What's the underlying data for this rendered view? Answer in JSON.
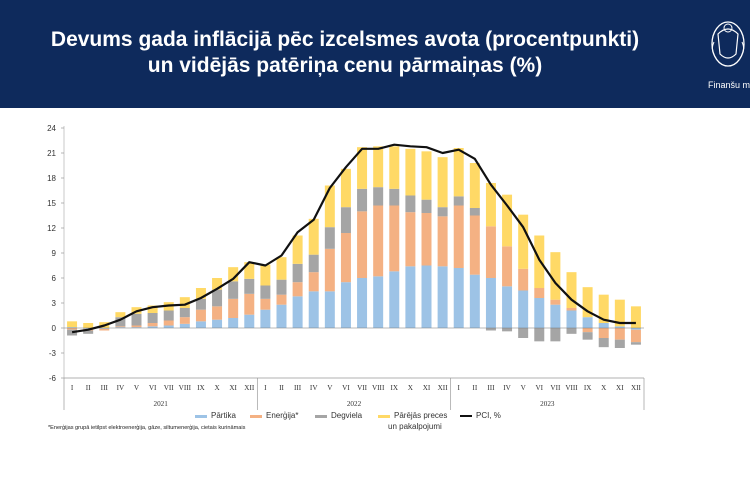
{
  "header": {
    "title_line1": "Devums gada inflācijā pēc izcelsmes avota (procentpunkti)",
    "title_line2": "un vidējās patēriņa cenu pārmaiņas (%)",
    "org_name": "Finanšu m",
    "background": "#0e2a5c"
  },
  "chart_data": {
    "type": "bar",
    "stacked": true,
    "months": [
      "I",
      "II",
      "III",
      "IV",
      "V",
      "VI",
      "VII",
      "VIII",
      "IX",
      "X",
      "XI",
      "XII",
      "I",
      "II",
      "III",
      "IV",
      "V",
      "VI",
      "VII",
      "VIII",
      "IX",
      "X",
      "XI",
      "XII",
      "I",
      "II",
      "III",
      "IV",
      "V",
      "VI",
      "VII",
      "VIII",
      "IX",
      "X",
      "XI",
      "XII"
    ],
    "years": [
      "2021",
      "2022",
      "2023"
    ],
    "y_ticks": [
      -6,
      -3,
      0,
      3,
      6,
      9,
      12,
      15,
      18,
      21,
      24
    ],
    "ylim": [
      -6,
      24
    ],
    "grid": false,
    "legend_position": "bottom",
    "series": [
      {
        "name": "Pārtika",
        "color": "#9dc3e6",
        "values": [
          0.1,
          -0.1,
          -0.1,
          0.1,
          0.1,
          0.2,
          0.3,
          0.5,
          0.8,
          1.0,
          1.2,
          1.6,
          2.2,
          2.8,
          3.8,
          4.4,
          4.4,
          5.5,
          6.0,
          6.2,
          6.8,
          7.4,
          7.5,
          7.4,
          7.2,
          6.4,
          6.0,
          5.0,
          4.5,
          3.6,
          2.8,
          2.1,
          1.3,
          0.6,
          0.2,
          -0.2
        ]
      },
      {
        "name": "Enerģija*",
        "color": "#f4b183",
        "values": [
          -0.2,
          -0.2,
          -0.2,
          0.1,
          0.2,
          0.4,
          0.6,
          0.8,
          1.4,
          1.6,
          2.3,
          2.5,
          1.3,
          1.2,
          1.7,
          2.3,
          5.1,
          5.9,
          8.0,
          8.5,
          7.9,
          6.5,
          6.3,
          6.0,
          7.5,
          7.1,
          6.2,
          4.8,
          2.6,
          1.2,
          0.6,
          0.3,
          -0.5,
          -1.2,
          -1.4,
          -1.5
        ]
      },
      {
        "name": "Degviela",
        "color": "#a5a5a5",
        "values": [
          -0.7,
          -0.4,
          0.0,
          1.1,
          1.4,
          1.2,
          1.2,
          1.1,
          1.3,
          2.0,
          2.1,
          1.8,
          1.6,
          1.8,
          2.2,
          2.1,
          2.6,
          3.1,
          2.7,
          2.2,
          2.0,
          2.0,
          1.6,
          1.1,
          1.1,
          0.9,
          -0.3,
          -0.4,
          -1.2,
          -1.6,
          -1.6,
          -0.7,
          -0.9,
          -1.1,
          -1.0,
          -0.3
        ]
      },
      {
        "name": "Pārējās preces un pakalpojumi",
        "color": "#ffd966",
        "values": [
          0.7,
          0.6,
          0.7,
          0.6,
          0.8,
          0.9,
          1.0,
          1.3,
          1.3,
          1.4,
          1.7,
          2.0,
          2.5,
          2.7,
          3.4,
          4.3,
          5.0,
          4.6,
          5.0,
          4.9,
          5.1,
          5.6,
          5.8,
          6.0,
          5.8,
          5.4,
          5.2,
          6.2,
          6.5,
          6.3,
          5.7,
          4.3,
          3.6,
          3.4,
          3.2,
          2.6
        ]
      }
    ],
    "line": {
      "name": "PCI, %",
      "color": "#111111",
      "values": [
        -0.5,
        -0.2,
        0.3,
        1.0,
        2.0,
        2.5,
        2.7,
        2.8,
        3.6,
        4.7,
        5.9,
        7.9,
        7.5,
        8.7,
        11.5,
        13.0,
        16.8,
        19.3,
        21.5,
        21.5,
        22.0,
        21.8,
        21.7,
        21.0,
        21.4,
        20.3,
        17.2,
        14.7,
        12.1,
        8.2,
        5.4,
        3.4,
        2.0,
        1.0,
        0.6,
        0.6
      ]
    },
    "legend_labels": {
      "food": "Pārtika",
      "energy": "Enerģija*",
      "fuel": "Degviela",
      "other_line1": "Pārējās preces",
      "other_line2": "un pakalpojumi",
      "pci": "PCI, %"
    }
  },
  "footnote": "*Enerģijas grupā ietilpst elektroenerģija, gāze, siltumenerģija, cietais kurināmais"
}
